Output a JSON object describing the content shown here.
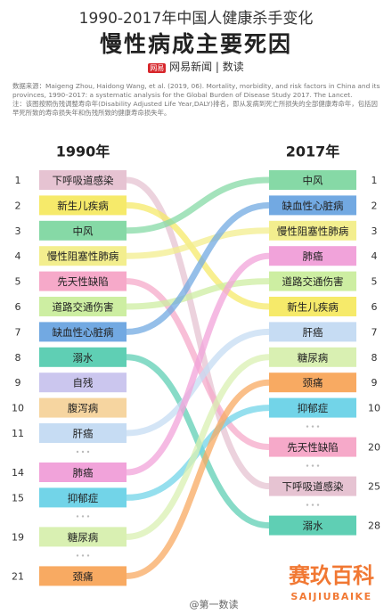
{
  "header": {
    "title": "1990-2017年中国人健康杀手变化",
    "subtitle": "慢性病成主要死因",
    "logo": "网易",
    "brand": "网易新闻 | 数读",
    "source": "数据来源：Maigeng Zhou, Haidong Wang, et al. (2019, 06). Mortality, morbidity, and risk factors in China and its provinces, 1990–2017: a systematic analysis for the Global Burden of Disease Study 2017. The Lancet.",
    "note": "注：该图按照伤残调整寿命年(Disability Adjusted Life Year,DALY)排名，即从发病到死亡所损失的全部健康寿命年，包括因早死所致的寿命损失年和伤残所致的健康寿命损失年。"
  },
  "left": {
    "heading": "1990年",
    "items": [
      {
        "rank": 1,
        "label": "下呼吸道感染",
        "color": "#e6c3d2"
      },
      {
        "rank": 2,
        "label": "新生儿疾病",
        "color": "#f6ea6a"
      },
      {
        "rank": 3,
        "label": "中风",
        "color": "#86d9a6"
      },
      {
        "rank": 4,
        "label": "慢性阻塞性肺病",
        "color": "#f3ee8e"
      },
      {
        "rank": 5,
        "label": "先天性缺陷",
        "color": "#f6a9c9"
      },
      {
        "rank": 6,
        "label": "道路交通伤害",
        "color": "#cdeea2"
      },
      {
        "rank": 7,
        "label": "缺血性心脏病",
        "color": "#72a9e2"
      },
      {
        "rank": 8,
        "label": "溺水",
        "color": "#5fcfb4"
      },
      {
        "rank": 9,
        "label": "自残",
        "color": "#cbc6ee"
      },
      {
        "rank": 10,
        "label": "腹泻病",
        "color": "#f6d5a0"
      },
      {
        "rank": 11,
        "label": "肝癌",
        "color": "#c6dcf3"
      },
      {
        "rank": 14,
        "label": "肺癌",
        "color": "#f1a3da"
      },
      {
        "rank": 15,
        "label": "抑郁症",
        "color": "#72d4e8"
      },
      {
        "rank": 19,
        "label": "糖尿病",
        "color": "#d9f0b2"
      },
      {
        "rank": 21,
        "label": "颈痛",
        "color": "#f8aa62"
      }
    ]
  },
  "right": {
    "heading": "2017年",
    "items": [
      {
        "rank": 1,
        "label": "中风",
        "color": "#86d9a6"
      },
      {
        "rank": 2,
        "label": "缺血性心脏病",
        "color": "#72a9e2"
      },
      {
        "rank": 3,
        "label": "慢性阻塞性肺病",
        "color": "#f3ee8e"
      },
      {
        "rank": 4,
        "label": "肺癌",
        "color": "#f1a3da"
      },
      {
        "rank": 5,
        "label": "道路交通伤害",
        "color": "#cdeea2"
      },
      {
        "rank": 6,
        "label": "新生儿疾病",
        "color": "#f6ea6a"
      },
      {
        "rank": 7,
        "label": "肝癌",
        "color": "#c6dcf3"
      },
      {
        "rank": 8,
        "label": "糖尿病",
        "color": "#d9f0b2"
      },
      {
        "rank": 9,
        "label": "颈痛",
        "color": "#f8aa62"
      },
      {
        "rank": 10,
        "label": "抑郁症",
        "color": "#72d4e8"
      },
      {
        "rank": 20,
        "label": "先天性缺陷",
        "color": "#f6a9c9"
      },
      {
        "rank": 25,
        "label": "下呼吸道感染",
        "color": "#e6c3d2"
      },
      {
        "rank": 28,
        "label": "溺水",
        "color": "#5fcfb4"
      }
    ]
  },
  "watermark": {
    "handle": "@第一数读",
    "brand": "赛玖百科",
    "brand_en": "SAIJIUBAIKE"
  }
}
